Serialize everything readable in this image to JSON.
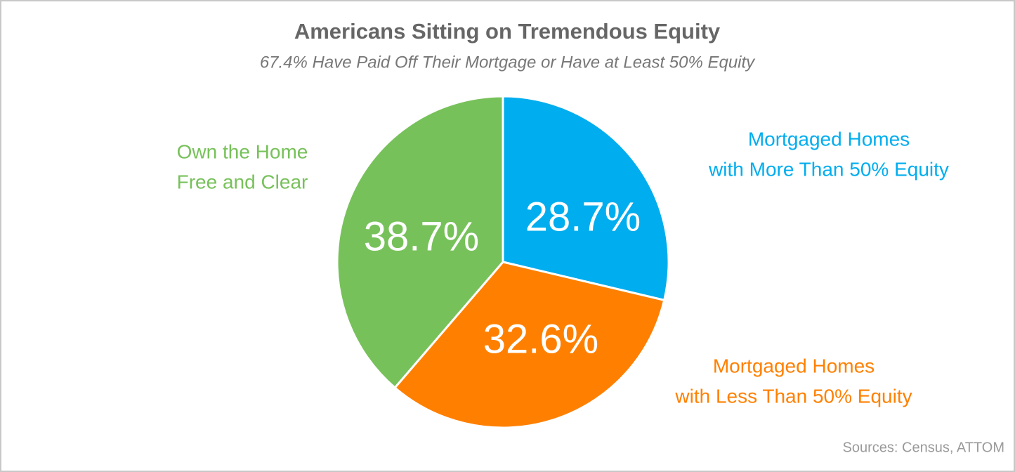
{
  "chart_data": {
    "type": "pie",
    "title": "Americans Sitting on Tremendous Equity",
    "subtitle": "67.4% Have Paid Off Their Mortgage or Have at Least 50% Equity",
    "categories": [
      [
        "Mortgaged Homes",
        "with More Than 50% Equity"
      ],
      [
        "Mortgaged Homes",
        "with Less Than 50% Equity"
      ],
      [
        "Own the Home",
        "Free and Clear"
      ]
    ],
    "values": [
      28.7,
      32.6,
      38.7
    ],
    "value_labels": [
      "28.7%",
      "32.6%",
      "38.7%"
    ],
    "colors": [
      "#00adee",
      "#ff8000",
      "#77c15a"
    ],
    "source": "Sources: Census, ATTOM"
  }
}
